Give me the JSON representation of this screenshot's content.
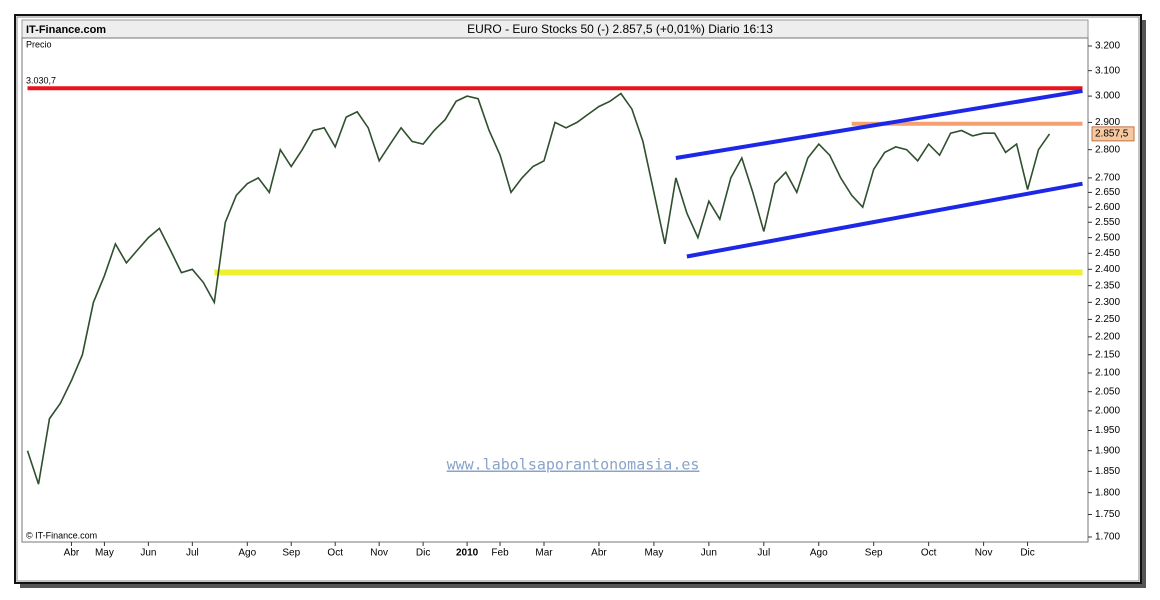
{
  "chart_data": {
    "type": "line",
    "site": "IT-Finance.com",
    "title": "EURO - Euro Stocks 50  (-)   2.857,5 (+0,01%)   Diario  16:13",
    "y_label": "Precio",
    "copyright": "© IT-Finance.com",
    "watermark": "www.labolsaporantonomasia.es",
    "log_scale": true,
    "color": "#2f4f2f",
    "categories": [
      null,
      null,
      null,
      null,
      "Abr",
      null,
      null,
      "May",
      null,
      null,
      null,
      "Jun",
      null,
      null,
      null,
      "Jul",
      null,
      null,
      null,
      null,
      "Ago",
      null,
      null,
      null,
      "Sep",
      null,
      null,
      null,
      "Oct",
      null,
      null,
      null,
      "Nov",
      null,
      null,
      null,
      "Dic",
      null,
      null,
      null,
      "2010",
      null,
      null,
      "Feb",
      null,
      null,
      null,
      "Mar",
      null,
      null,
      null,
      null,
      "Abr",
      null,
      null,
      null,
      null,
      "May",
      null,
      null,
      null,
      null,
      "Jun",
      null,
      null,
      null,
      null,
      "Jul",
      null,
      null,
      null,
      null,
      "Ago",
      null,
      null,
      null,
      null,
      "Sep",
      null,
      null,
      null,
      null,
      "Oct",
      null,
      null,
      null,
      null,
      "Nov",
      null,
      null,
      null,
      "Dic",
      null,
      null,
      null,
      null,
      null
    ],
    "values": [
      1900,
      1820,
      1980,
      2020,
      2080,
      2150,
      2300,
      2380,
      2480,
      2420,
      2460,
      2500,
      2530,
      2460,
      2390,
      2400,
      2360,
      2300,
      2550,
      2640,
      2680,
      2700,
      2650,
      2800,
      2740,
      2800,
      2870,
      2880,
      2810,
      2920,
      2940,
      2880,
      2760,
      2820,
      2880,
      2830,
      2820,
      2870,
      2910,
      2980,
      3000,
      2990,
      2870,
      2780,
      2650,
      2700,
      2740,
      2760,
      2900,
      2880,
      2900,
      2930,
      2960,
      2980,
      3010,
      2950,
      2830,
      2650,
      2480,
      2700,
      2580,
      2500,
      2620,
      2560,
      2700,
      2770,
      2650,
      2520,
      2680,
      2720,
      2650,
      2770,
      2820,
      2780,
      2700,
      2640,
      2600,
      2730,
      2790,
      2810,
      2800,
      2760,
      2820,
      2780,
      2860,
      2870,
      2850,
      2860,
      2860,
      2790,
      2820,
      2660,
      2800,
      2857.5,
      null,
      null,
      null
    ],
    "last_label": {
      "value": 2857.5,
      "label": "2.857,5"
    },
    "lines": [
      {
        "color": "#e8141c",
        "x": [
          0,
          96
        ],
        "y": [
          3030.7,
          3030.7
        ],
        "label": "3.030,7"
      },
      {
        "color": "#f0f032",
        "x": [
          17,
          96
        ],
        "y": [
          2390,
          2390
        ]
      },
      {
        "color": "#f4a070",
        "x": [
          75,
          96
        ],
        "y": [
          2895,
          2895
        ]
      },
      {
        "color": "#1c28e6",
        "x": [
          59,
          96
        ],
        "y": [
          2770,
          3020
        ]
      },
      {
        "color": "#1c28e6",
        "x": [
          60,
          96
        ],
        "y": [
          2440,
          2680
        ]
      }
    ],
    "ylim": [
      1700,
      3200
    ],
    "yticks": [
      {
        "value": 3200,
        "label": "3.200"
      },
      {
        "value": 3100,
        "label": "3.100"
      },
      {
        "value": 3000,
        "label": "3.000"
      },
      {
        "value": 2900,
        "label": "2.900"
      },
      {
        "value": 2800,
        "label": "2.800"
      },
      {
        "value": 2700,
        "label": "2.700"
      },
      {
        "value": 2650,
        "label": "2.650"
      },
      {
        "value": 2600,
        "label": "2.600"
      },
      {
        "value": 2550,
        "label": "2.550"
      },
      {
        "value": 2500,
        "label": "2.500"
      },
      {
        "value": 2450,
        "label": "2.450"
      },
      {
        "value": 2400,
        "label": "2.400"
      },
      {
        "value": 2350,
        "label": "2.350"
      },
      {
        "value": 2300,
        "label": "2.300"
      },
      {
        "value": 2250,
        "label": "2.250"
      },
      {
        "value": 2200,
        "label": "2.200"
      },
      {
        "value": 2150,
        "label": "2.150"
      },
      {
        "value": 2100,
        "label": "2.100"
      },
      {
        "value": 2050,
        "label": "2.050"
      },
      {
        "value": 2000,
        "label": "2.000"
      },
      {
        "value": 1950,
        "label": "1.950"
      },
      {
        "value": 1900,
        "label": "1.900"
      },
      {
        "value": 1850,
        "label": "1.850"
      },
      {
        "value": 1800,
        "label": "1.800"
      },
      {
        "value": 1750,
        "label": "1.750"
      },
      {
        "value": 1700,
        "label": "1.700"
      }
    ]
  }
}
